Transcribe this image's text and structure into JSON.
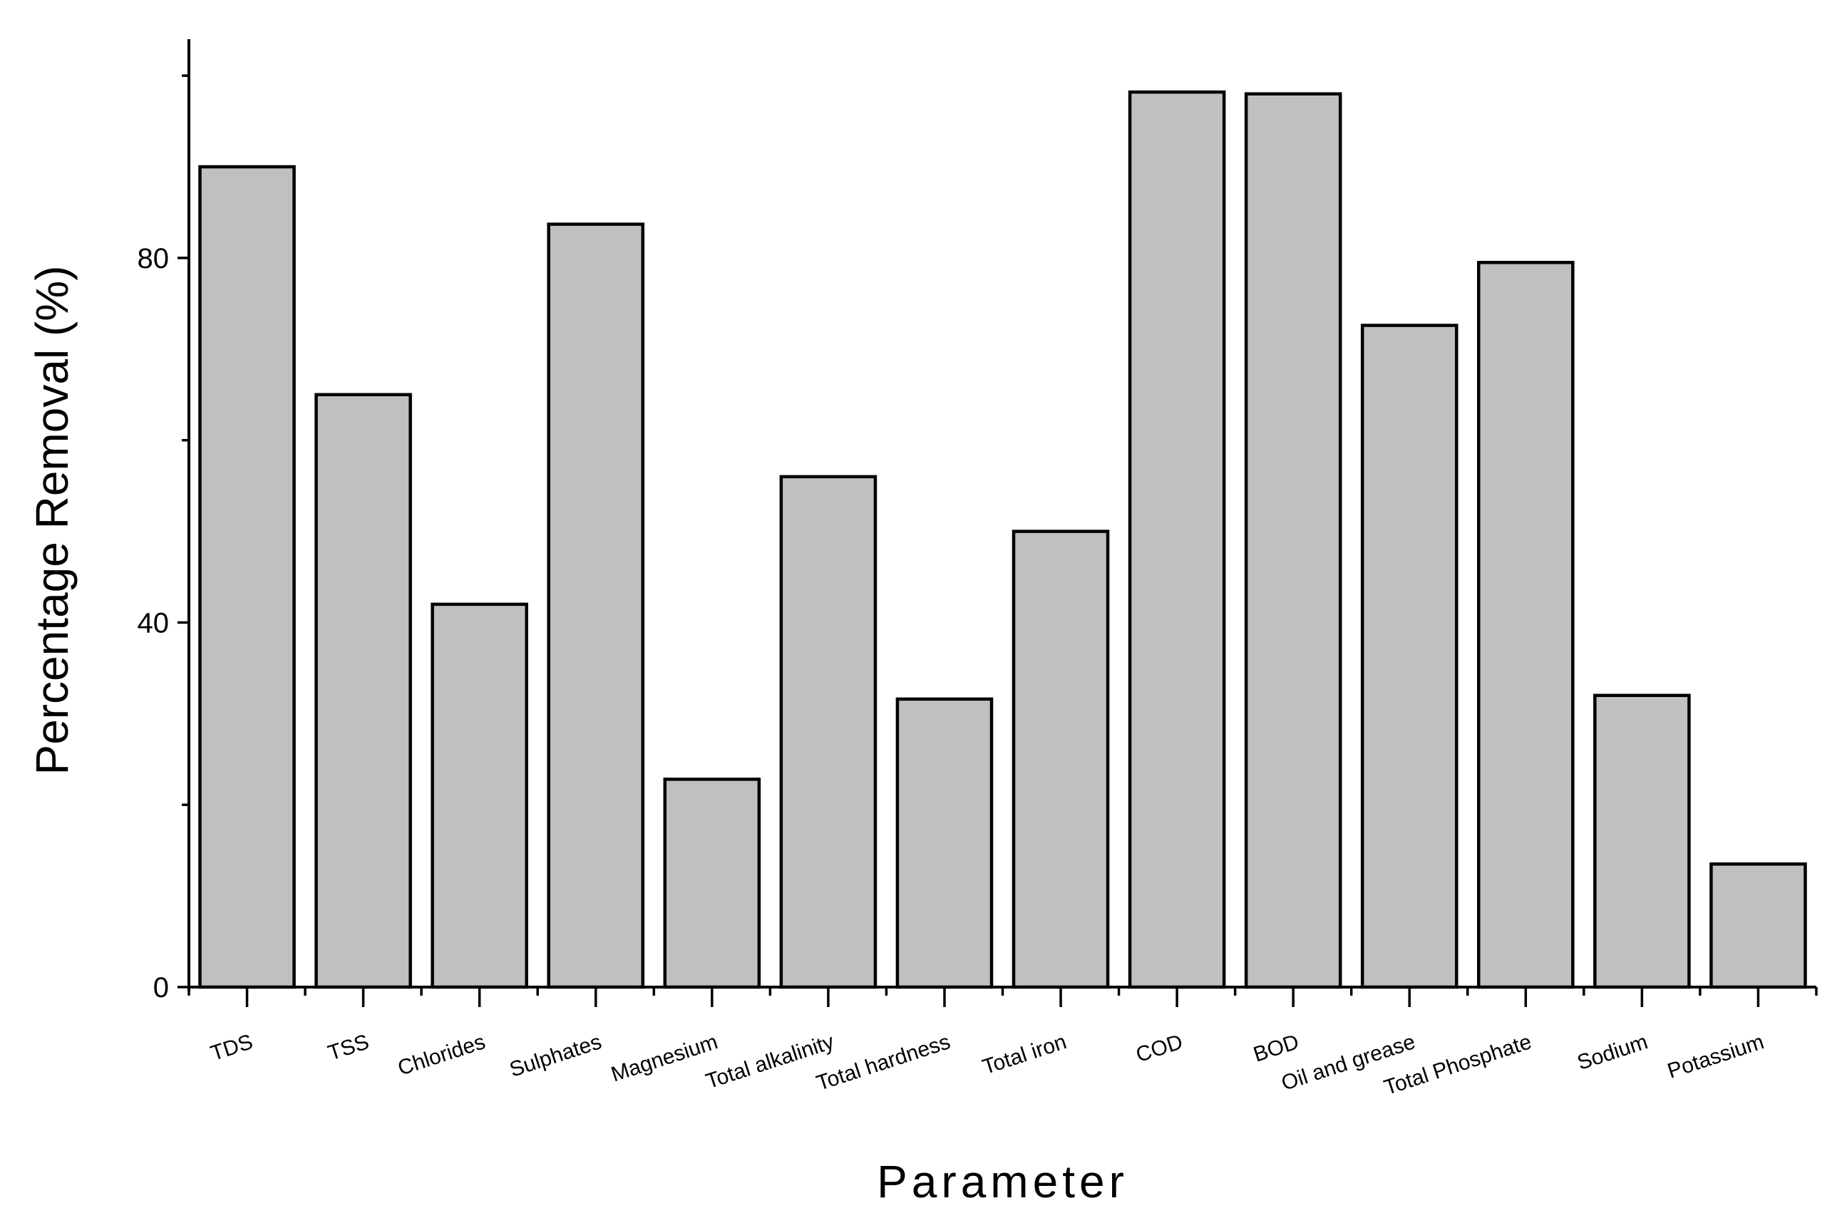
{
  "chart_data": {
    "type": "bar",
    "xlabel": "Parameter",
    "ylabel": "Percentage Removal (%)",
    "ylim": [
      0,
      104
    ],
    "yticks_labeled": [
      0,
      40,
      80
    ],
    "yticks_minor": [
      20,
      60,
      100
    ],
    "grid": false,
    "legend": "none",
    "categories": [
      "TDS",
      "TSS",
      "Chlorides",
      "Sulphates",
      "Magnesium",
      "Total alkalinity",
      "Total hardness",
      "Total iron",
      "COD",
      "BOD",
      "Oil and grease",
      "Total Phosphate",
      "Sodium",
      "Potassium"
    ],
    "values": [
      90,
      65,
      42,
      83.7,
      22.8,
      56,
      31.6,
      50,
      98.2,
      98,
      72.6,
      79.5,
      32,
      13.5
    ],
    "bar_color": "#c0c0c0",
    "edge_color": "#000000"
  }
}
